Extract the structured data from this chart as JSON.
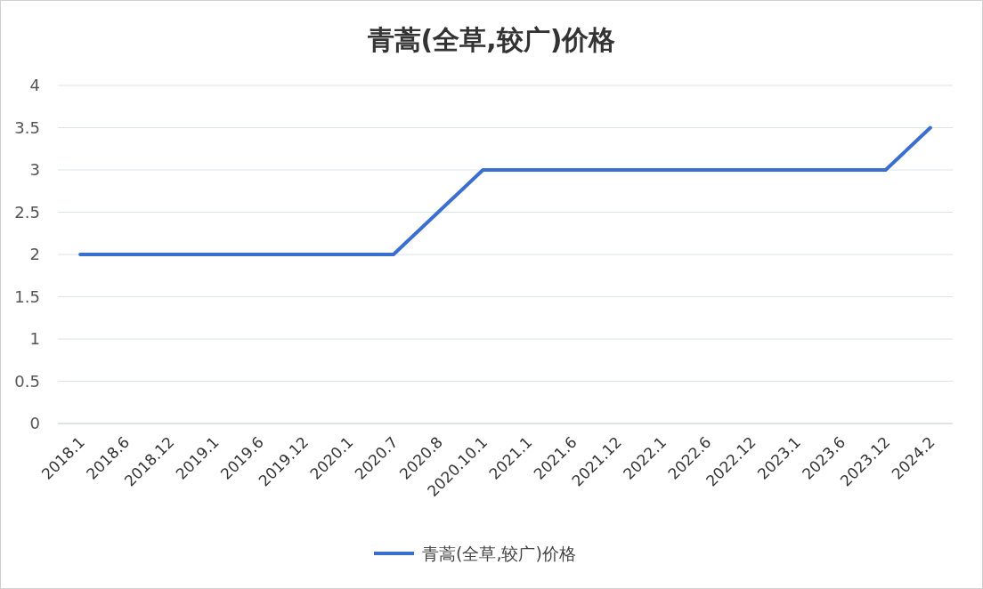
{
  "chart_data": {
    "type": "line",
    "title": "青蒿(全草,较广)价格",
    "categories": [
      "2018.1",
      "2018.6",
      "2018.12",
      "2019.1",
      "2019.6",
      "2019.12",
      "2020.1",
      "2020.7",
      "2020.8",
      "2020.10.1",
      "2021.1",
      "2021.6",
      "2021.12",
      "2022.1",
      "2022.6",
      "2022.12",
      "2023.1",
      "2023.6",
      "2023.12",
      "2024.2"
    ],
    "series": [
      {
        "name": "青蒿(全草,较广)价格",
        "color": "#3a6fd0",
        "values": [
          2,
          2,
          2,
          2,
          2,
          2,
          2,
          2,
          2.5,
          3,
          3,
          3,
          3,
          3,
          3,
          3,
          3,
          3,
          3,
          3.5
        ]
      }
    ],
    "ylim": [
      0,
      4
    ],
    "yticks": [
      0,
      0.5,
      1,
      1.5,
      2,
      2.5,
      3,
      3.5,
      4
    ],
    "grid": "y",
    "legend": "bottom",
    "marker": "none",
    "line_style": "solid"
  }
}
